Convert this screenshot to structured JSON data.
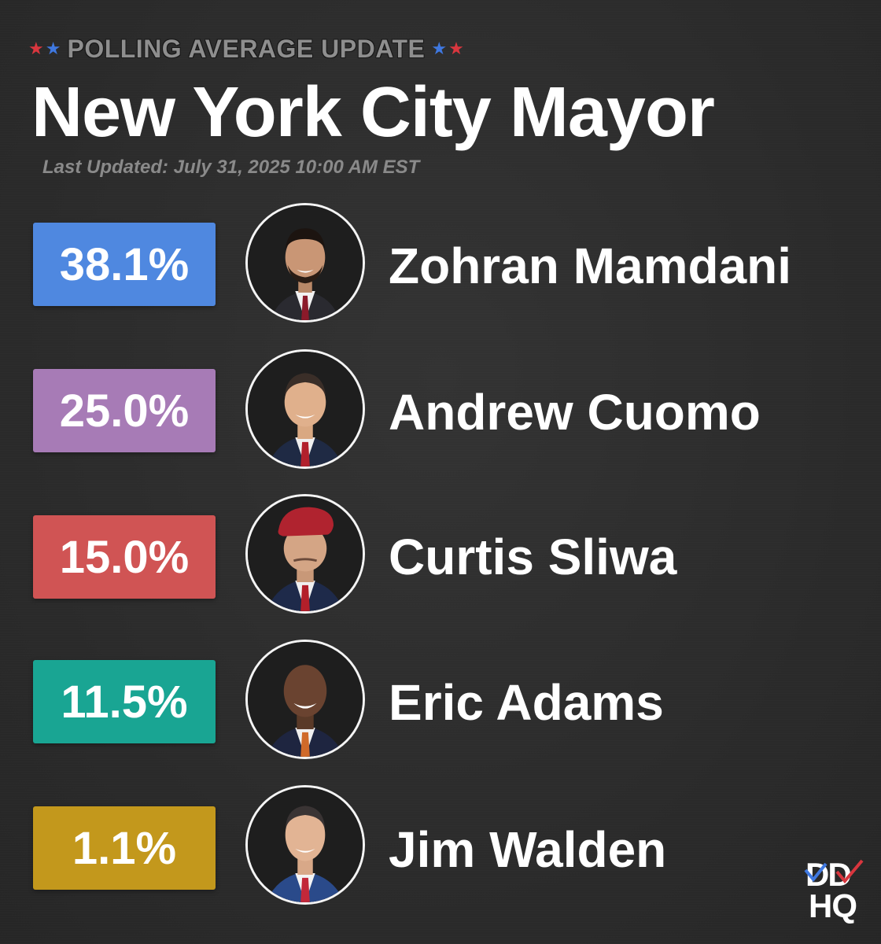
{
  "header": {
    "kicker": "POLLING AVERAGE UPDATE",
    "title": "New York City Mayor",
    "last_updated": "Last Updated: July 31, 2025 10:00 AM EST"
  },
  "colors": {
    "background": "#2e2e2e",
    "star_red": "#d9363e",
    "star_blue": "#3f78e0"
  },
  "candidates": [
    {
      "name": "Zohran Mamdani",
      "percent": "38.1%",
      "value": 38.1,
      "color": "#4f88e0",
      "avatar": "candidate-photo"
    },
    {
      "name": "Andrew Cuomo",
      "percent": "25.0%",
      "value": 25.0,
      "color": "#a77bb6",
      "avatar": "candidate-photo"
    },
    {
      "name": "Curtis Sliwa",
      "percent": "15.0%",
      "value": 15.0,
      "color": "#d05454",
      "avatar": "candidate-photo"
    },
    {
      "name": "Eric Adams",
      "percent": "11.5%",
      "value": 11.5,
      "color": "#19a593",
      "avatar": "candidate-photo"
    },
    {
      "name": "Jim Walden",
      "percent": "1.1%",
      "value": 1.1,
      "color": "#c3981c",
      "avatar": "candidate-photo"
    }
  ],
  "logo": {
    "top": "DD",
    "bottom": "HQ"
  }
}
